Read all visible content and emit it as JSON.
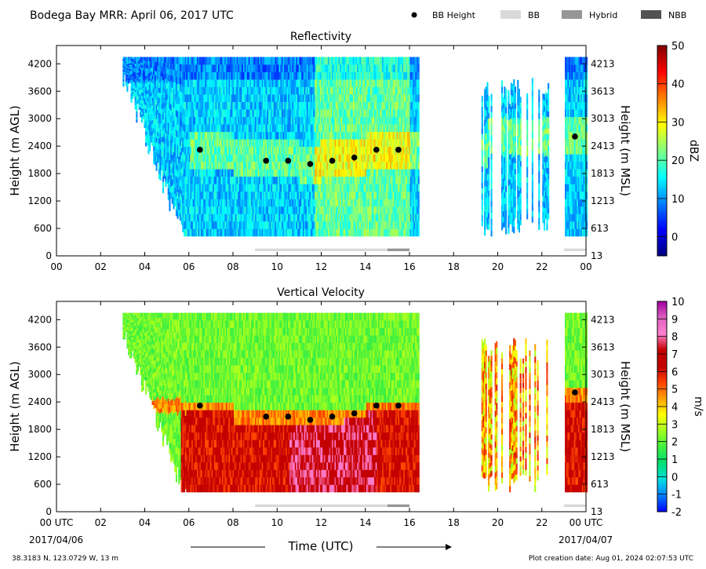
{
  "header": {
    "title": "Bodega Bay MRR:  April 06, 2017 UTC",
    "legend": [
      {
        "label": "BB Height",
        "kind": "dot",
        "color": "#000000"
      },
      {
        "label": "BB",
        "kind": "box",
        "color": "#d9d9d9"
      },
      {
        "label": "Hybrid",
        "kind": "box",
        "color": "#969696"
      },
      {
        "label": "NBB",
        "kind": "box",
        "color": "#525252"
      }
    ]
  },
  "footer": {
    "location": "38.3183 N, 123.0729 W, 13 m",
    "created": "Plot creation date: Aug 01, 2024 02:07:53 UTC",
    "time_label": "Time (UTC)",
    "date_start": "2017/04/06",
    "date_end": "2017/04/07"
  },
  "colors": {
    "dbz_scale": [
      "#000080",
      "#0000ff",
      "#0080ff",
      "#00ffff",
      "#80ff80",
      "#ffff00",
      "#ff8000",
      "#ff0000",
      "#800000"
    ],
    "velocity_scale": [
      "#0000ff",
      "#0080ff",
      "#00e0e0",
      "#00e070",
      "#40f040",
      "#a0ff20",
      "#ffff00",
      "#ffa000",
      "#ff4000",
      "#c00000",
      "#c80000",
      "#ff80d0",
      "#e060c0",
      "#a000a0"
    ],
    "bb_band": "#d9d9d9",
    "hybrid_band": "#969696"
  },
  "chart_data": [
    {
      "type": "heatmap",
      "title": "Reflectivity",
      "xlabel": "",
      "ylabel": "Height (m AGL)",
      "ylabel_right": "Height (m MSL)",
      "x_ticks": [
        "00",
        "02",
        "04",
        "06",
        "08",
        "10",
        "12",
        "14",
        "16",
        "18",
        "20",
        "22",
        "00"
      ],
      "xlim": [
        0,
        24
      ],
      "ylim": [
        0,
        4600
      ],
      "y_ticks": [
        0,
        600,
        1200,
        1800,
        2400,
        3000,
        3600,
        4200
      ],
      "y_ticks_right": [
        13,
        613,
        1213,
        1813,
        2413,
        3013,
        3613,
        4213
      ],
      "colorbar": {
        "label": "dBZ",
        "range": [
          -5,
          50
        ],
        "ticks": [
          0,
          10,
          20,
          30,
          40,
          50
        ]
      },
      "echo_periods_utc": [
        [
          3.0,
          16.4
        ],
        [
          19.2,
          22.3
        ],
        [
          23.0,
          24.0
        ]
      ],
      "bright_band_heights": [
        {
          "x": 6.5,
          "y": 2320
        },
        {
          "x": 9.5,
          "y": 2080
        },
        {
          "x": 10.5,
          "y": 2080
        },
        {
          "x": 11.5,
          "y": 2010
        },
        {
          "x": 12.5,
          "y": 2080
        },
        {
          "x": 13.5,
          "y": 2150
        },
        {
          "x": 14.5,
          "y": 2320
        },
        {
          "x": 15.5,
          "y": 2320
        },
        {
          "x": 23.5,
          "y": 2610
        }
      ],
      "bb_type_periods": [
        {
          "type": "BB",
          "start": 9.0,
          "end": 15.0
        },
        {
          "type": "Hybrid",
          "start": 15.0,
          "end": 16.0
        },
        {
          "type": "BB",
          "start": 23.0,
          "end": 24.0
        }
      ]
    },
    {
      "type": "heatmap",
      "title": "Vertical Velocity",
      "xlabel": "Time (UTC)",
      "ylabel": "Height (m AGL)",
      "ylabel_right": "Height (m MSL)",
      "x_ticks": [
        "00 UTC",
        "02",
        "04",
        "06",
        "08",
        "10",
        "12",
        "14",
        "16",
        "18",
        "20",
        "22",
        "00 UTC"
      ],
      "xlim": [
        0,
        24
      ],
      "ylim": [
        0,
        4600
      ],
      "y_ticks": [
        0,
        600,
        1200,
        1800,
        2400,
        3000,
        3600,
        4200
      ],
      "y_ticks_right": [
        13,
        613,
        1213,
        1813,
        2413,
        3013,
        3613,
        4213
      ],
      "colorbar": {
        "label": "m/s",
        "range": [
          -2,
          10
        ],
        "ticks": [
          -2,
          -1,
          0,
          1,
          2,
          3,
          4,
          5,
          6,
          7,
          8,
          9,
          10
        ]
      },
      "echo_periods_utc": [
        [
          3.0,
          16.4
        ],
        [
          19.2,
          22.3
        ],
        [
          23.0,
          24.0
        ]
      ],
      "bright_band_heights": [
        {
          "x": 6.5,
          "y": 2320
        },
        {
          "x": 9.5,
          "y": 2080
        },
        {
          "x": 10.5,
          "y": 2080
        },
        {
          "x": 11.5,
          "y": 2010
        },
        {
          "x": 12.5,
          "y": 2080
        },
        {
          "x": 13.5,
          "y": 2150
        },
        {
          "x": 14.5,
          "y": 2320
        },
        {
          "x": 15.5,
          "y": 2320
        },
        {
          "x": 23.5,
          "y": 2610
        }
      ],
      "bb_type_periods": [
        {
          "type": "BB",
          "start": 9.0,
          "end": 15.0
        },
        {
          "type": "Hybrid",
          "start": 15.0,
          "end": 16.0
        },
        {
          "type": "BB",
          "start": 23.0,
          "end": 24.0
        }
      ]
    }
  ]
}
